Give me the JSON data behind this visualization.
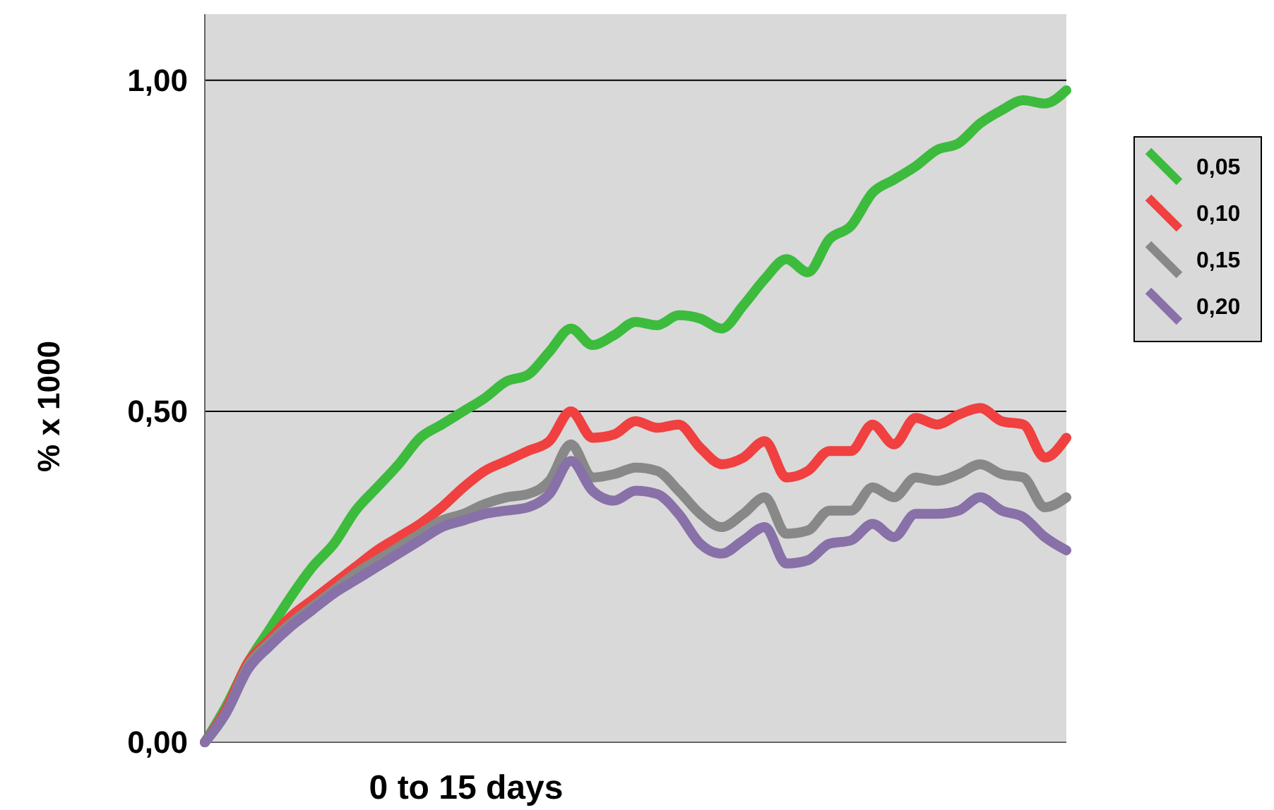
{
  "chart_data": {
    "type": "line",
    "xlabel": "0 to 15 days",
    "ylabel": "% x 1000",
    "categories": [
      null,
      null,
      null,
      null,
      null,
      null,
      null,
      null,
      null,
      null,
      null,
      null,
      null,
      null,
      null,
      null,
      null,
      null,
      null,
      null,
      null,
      null,
      null,
      null,
      null,
      null,
      null,
      null,
      null,
      null,
      null,
      null,
      null,
      null,
      null,
      null,
      null,
      null,
      null,
      null,
      null
    ],
    "series": [
      {
        "name": "0,05",
        "color": "#3dbb3d",
        "values": [
          0,
          0.055,
          0.12,
          0.17,
          0.22,
          0.265,
          0.3,
          0.35,
          0.385,
          0.42,
          0.46,
          0.48,
          0.5,
          0.52,
          0.545,
          0.555,
          0.59,
          0.625,
          0.6,
          0.615,
          0.635,
          0.63,
          0.645,
          0.64,
          0.625,
          0.66,
          0.7,
          0.73,
          0.71,
          0.76,
          0.78,
          0.83,
          0.85,
          0.87,
          0.895,
          0.905,
          0.935,
          0.955,
          0.97,
          0.965,
          0.985
        ]
      },
      {
        "name": "0,10",
        "color": "#f04040",
        "values": [
          0,
          0.05,
          0.12,
          0.155,
          0.19,
          0.215,
          0.24,
          0.265,
          0.29,
          0.31,
          0.33,
          0.355,
          0.385,
          0.41,
          0.425,
          0.44,
          0.455,
          0.5,
          0.46,
          0.465,
          0.485,
          0.475,
          0.48,
          0.445,
          0.42,
          0.43,
          0.455,
          0.4,
          0.41,
          0.44,
          0.44,
          0.48,
          0.45,
          0.49,
          0.48,
          0.495,
          0.505,
          0.485,
          0.48,
          0.43,
          0.46
        ]
      },
      {
        "name": "0,15",
        "color": "#888888",
        "values": [
          0,
          0.045,
          0.115,
          0.15,
          0.18,
          0.205,
          0.23,
          0.255,
          0.275,
          0.295,
          0.315,
          0.335,
          0.345,
          0.36,
          0.37,
          0.375,
          0.395,
          0.45,
          0.4,
          0.405,
          0.415,
          0.41,
          0.38,
          0.345,
          0.325,
          0.345,
          0.37,
          0.315,
          0.32,
          0.35,
          0.35,
          0.385,
          0.37,
          0.4,
          0.395,
          0.405,
          0.42,
          0.405,
          0.4,
          0.355,
          0.37
        ]
      },
      {
        "name": "0,20",
        "color": "#8870a8",
        "values": [
          0,
          0.045,
          0.11,
          0.145,
          0.175,
          0.2,
          0.225,
          0.245,
          0.265,
          0.285,
          0.305,
          0.325,
          0.335,
          0.345,
          0.35,
          0.355,
          0.375,
          0.425,
          0.38,
          0.365,
          0.38,
          0.375,
          0.345,
          0.3,
          0.285,
          0.305,
          0.325,
          0.27,
          0.275,
          0.3,
          0.305,
          0.33,
          0.31,
          0.345,
          0.345,
          0.35,
          0.37,
          0.35,
          0.34,
          0.31,
          0.29
        ]
      }
    ],
    "ylim": [
      0,
      1.1
    ],
    "yticks": [
      {
        "value": 0,
        "label": "0,00"
      },
      {
        "value": 0.5,
        "label": "0,50"
      },
      {
        "value": 1,
        "label": "1,00"
      }
    ],
    "grid": "y",
    "legend": "right",
    "marker": "none",
    "line_style": "solid",
    "tick_labels": "y"
  }
}
